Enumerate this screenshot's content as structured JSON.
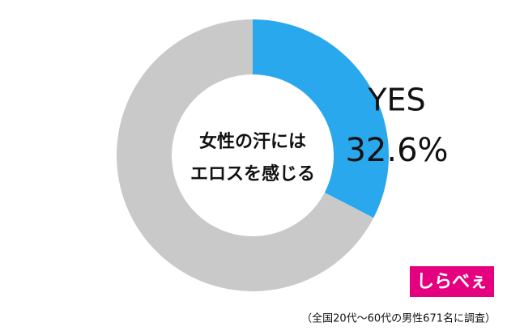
{
  "chart_data": {
    "type": "donut",
    "categories": [
      "YES",
      null
    ],
    "values": [
      32.6,
      67.4
    ],
    "value_labels": [
      "32.6%",
      null
    ],
    "colors": [
      "#2aa8ee",
      "#c9c9c9"
    ],
    "center_text": [
      "女性の汗には",
      "エロスを感じる"
    ],
    "note": "（全国20代～60代の男性671名に調査）"
  },
  "logo": "しらべぇ"
}
